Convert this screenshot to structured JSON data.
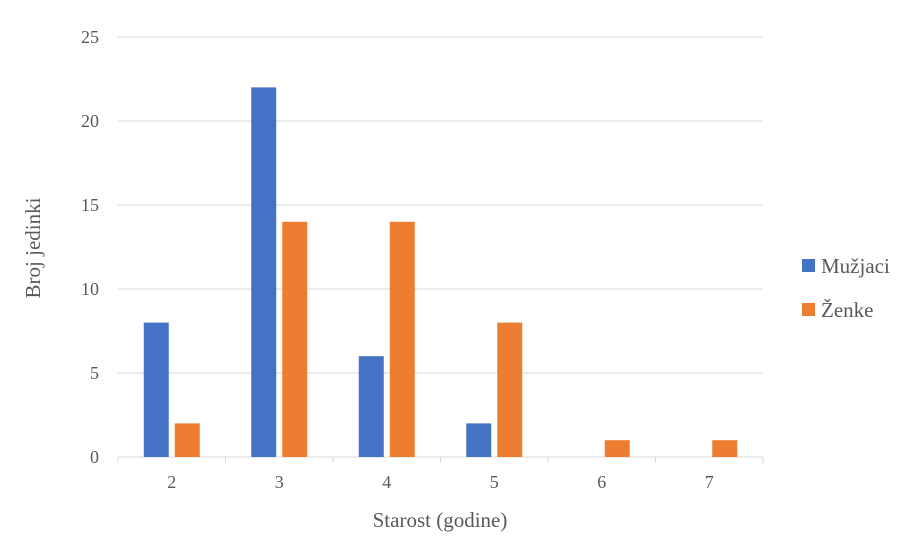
{
  "chart_data": {
    "type": "bar",
    "title": "",
    "xlabel": "Starost (godine)",
    "ylabel": "Broj jedinki",
    "categories": [
      "2",
      "3",
      "4",
      "5",
      "6",
      "7"
    ],
    "series": [
      {
        "name": "Mužjaci",
        "color": "#4472C4",
        "values": [
          8,
          22,
          6,
          2,
          0,
          0
        ]
      },
      {
        "name": "Ženke",
        "color": "#ED7D31",
        "values": [
          2,
          14,
          14,
          8,
          1,
          1
        ]
      }
    ],
    "ylim": [
      0,
      25
    ],
    "yticks": [
      "0",
      "5",
      "10",
      "15",
      "20",
      "25"
    ],
    "grid": true,
    "legend_position": "right"
  }
}
